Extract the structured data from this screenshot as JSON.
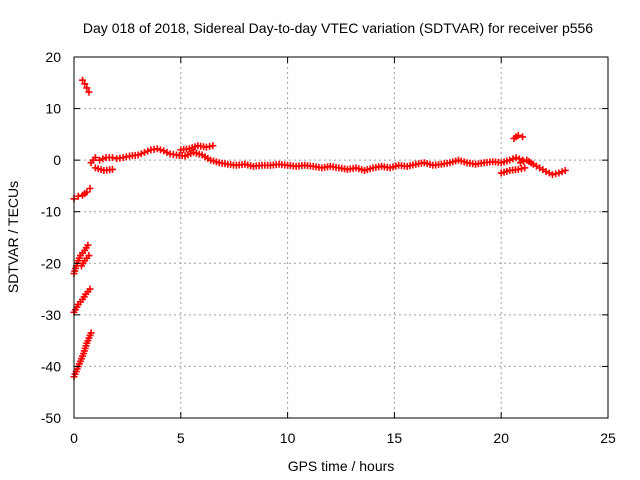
{
  "chart_data": {
    "type": "scatter",
    "title": "Day 018 of 2018, Sidereal Day-to-day VTEC variation (SDTVAR) for receiver p556",
    "xlabel": "GPS time / hours",
    "ylabel": "SDTVAR / TECUs",
    "xlim": [
      0,
      25
    ],
    "ylim": [
      -50,
      20
    ],
    "xticks": [
      0,
      5,
      10,
      15,
      20,
      25
    ],
    "yticks": [
      20,
      10,
      0,
      -10,
      -20,
      -30,
      -40,
      -50
    ],
    "grid": true,
    "marker_color": "#ff0000",
    "series": [
      {
        "name": "SDTVAR",
        "segments": [
          {
            "x": [
              0.0,
              0.2,
              0.4,
              0.6,
              0.75
            ],
            "y": [
              -7.5,
              -7.0,
              -6.8,
              -6.2,
              -5.5
            ]
          },
          {
            "x": [
              0.0,
              0.15,
              0.3,
              0.5,
              0.65
            ],
            "y": [
              -22.0,
              -20.0,
              -18.5,
              -17.5,
              -16.5
            ]
          },
          {
            "x": [
              0.35,
              0.5,
              0.7
            ],
            "y": [
              -20.5,
              -19.5,
              -18.5
            ]
          },
          {
            "x": [
              0.0,
              0.2,
              0.4,
              0.55,
              0.75
            ],
            "y": [
              -29.5,
              -28.0,
              -27.0,
              -26.0,
              -25.0
            ]
          },
          {
            "x": [
              0.0,
              0.15,
              0.3,
              0.45,
              0.6,
              0.8
            ],
            "y": [
              -42.0,
              -40.5,
              -39.0,
              -37.5,
              -35.5,
              -33.5
            ]
          },
          {
            "x": [
              0.4,
              0.5,
              0.6,
              0.7
            ],
            "y": [
              15.5,
              14.8,
              14.0,
              13.2
            ]
          },
          {
            "x": [
              0.8,
              1.0,
              1.2,
              1.5,
              1.8,
              2.0,
              2.3,
              2.6,
              3.0,
              3.3,
              3.6,
              3.9,
              4.2,
              4.5,
              4.8,
              5.2,
              5.6,
              6.0,
              6.4,
              6.8,
              7.2,
              7.6,
              8.0,
              8.4,
              8.8,
              9.2,
              9.6,
              10.0,
              10.4,
              10.8,
              11.2,
              11.6,
              12.0,
              12.4,
              12.8,
              13.2,
              13.6,
              14.0,
              14.4,
              14.8,
              15.2,
              15.6,
              16.0,
              16.4,
              16.8,
              17.2,
              17.6,
              18.0,
              18.4,
              18.8,
              19.2,
              19.6,
              20.0,
              20.4,
              20.7,
              21.0
            ],
            "y": [
              -0.5,
              0.5,
              0.0,
              0.5,
              0.5,
              0.3,
              0.5,
              0.8,
              1.0,
              1.5,
              2.0,
              2.2,
              1.8,
              1.2,
              1.0,
              0.8,
              1.5,
              1.0,
              0.0,
              -0.5,
              -0.8,
              -1.0,
              -0.8,
              -1.2,
              -1.0,
              -1.0,
              -0.8,
              -1.0,
              -1.2,
              -1.0,
              -1.2,
              -1.5,
              -1.2,
              -1.5,
              -1.8,
              -1.5,
              -2.0,
              -1.5,
              -1.2,
              -1.5,
              -1.0,
              -1.2,
              -0.8,
              -0.5,
              -1.0,
              -0.8,
              -0.5,
              0.0,
              -0.5,
              -0.8,
              -0.5,
              -0.3,
              -0.5,
              0.0,
              0.5,
              0.0
            ]
          },
          {
            "x": [
              5.0,
              5.4,
              5.8,
              6.2,
              6.5
            ],
            "y": [
              2.0,
              2.2,
              2.8,
              2.5,
              2.8
            ]
          },
          {
            "x": [
              1.0,
              1.4,
              1.8
            ],
            "y": [
              -1.5,
              -2.0,
              -1.8
            ]
          },
          {
            "x": [
              20.6,
              20.8,
              21.0
            ],
            "y": [
              4.2,
              4.8,
              4.5
            ]
          },
          {
            "x": [
              20.0,
              20.4,
              20.8,
              21.1
            ],
            "y": [
              -2.5,
              -2.0,
              -1.8,
              -1.5
            ]
          },
          {
            "x": [
              20.9,
              21.2,
              21.5,
              21.8,
              22.1,
              22.4,
              22.7,
              23.0
            ],
            "y": [
              -0.5,
              0.0,
              -0.8,
              -1.5,
              -2.2,
              -2.8,
              -2.5,
              -2.0
            ]
          }
        ]
      }
    ]
  }
}
